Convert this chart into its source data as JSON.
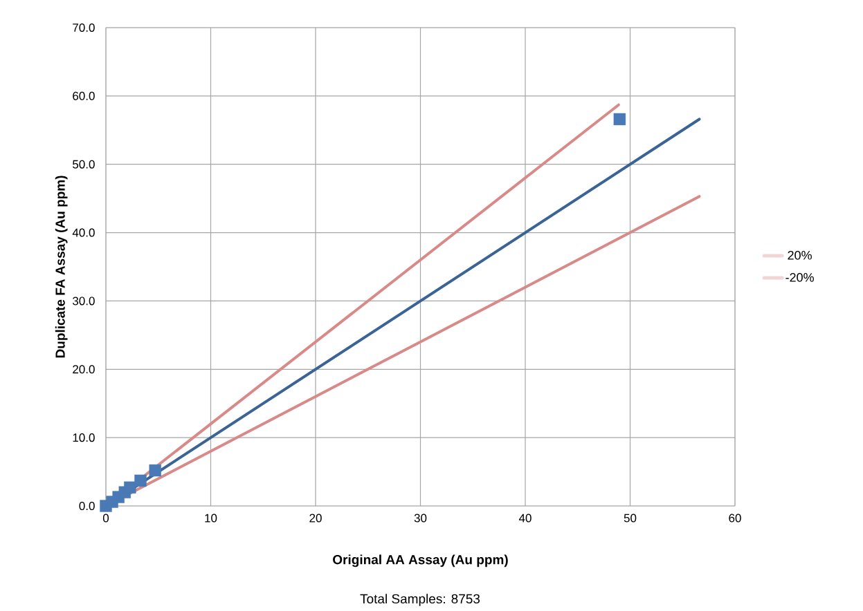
{
  "chart_data": {
    "type": "scatter",
    "xlabel": "Original AA Assay (Au ppm)",
    "ylabel": "Duplicate FA Assay (Au ppm)",
    "annotations": [
      "Total Samples: 8753"
    ],
    "xlim": [
      0,
      60
    ],
    "ylim": [
      0,
      70
    ],
    "xticks": [
      0,
      10,
      20,
      30,
      40,
      50,
      60
    ],
    "yticks": [
      {
        "value": 0,
        "label": "0.0"
      },
      {
        "value": 10,
        "label": "10.0"
      },
      {
        "value": 20,
        "label": "20.0"
      },
      {
        "value": 30,
        "label": "30.0"
      },
      {
        "value": 40,
        "label": "40.0"
      },
      {
        "value": 50,
        "label": "50.0"
      },
      {
        "value": 60,
        "label": "60.0"
      },
      {
        "value": 70,
        "label": "70.0"
      }
    ],
    "grid": true,
    "legend": "right",
    "series": [
      {
        "color": "#4a7ab5",
        "marker": "square",
        "x": [
          0,
          0.6,
          1.2,
          1.8,
          2.3,
          3.3,
          4.7,
          49.0
        ],
        "values": [
          0,
          0.6,
          1.3,
          2.0,
          2.7,
          3.7,
          5.2,
          56.6
        ]
      },
      {
        "type": "line",
        "color": "#d88a88",
        "marker": "none",
        "x": [
          0,
          48.9
        ],
        "values": [
          0,
          58.7
        ],
        "name": "20%"
      },
      {
        "type": "line",
        "color": "#d88a88",
        "marker": "none",
        "x": [
          0,
          56.6
        ],
        "values": [
          0,
          45.3
        ],
        "name": "-20%"
      },
      {
        "type": "line",
        "color": "#3a6496",
        "marker": "none",
        "x": [
          0,
          56.6
        ],
        "values": [
          0,
          56.6
        ]
      }
    ]
  }
}
